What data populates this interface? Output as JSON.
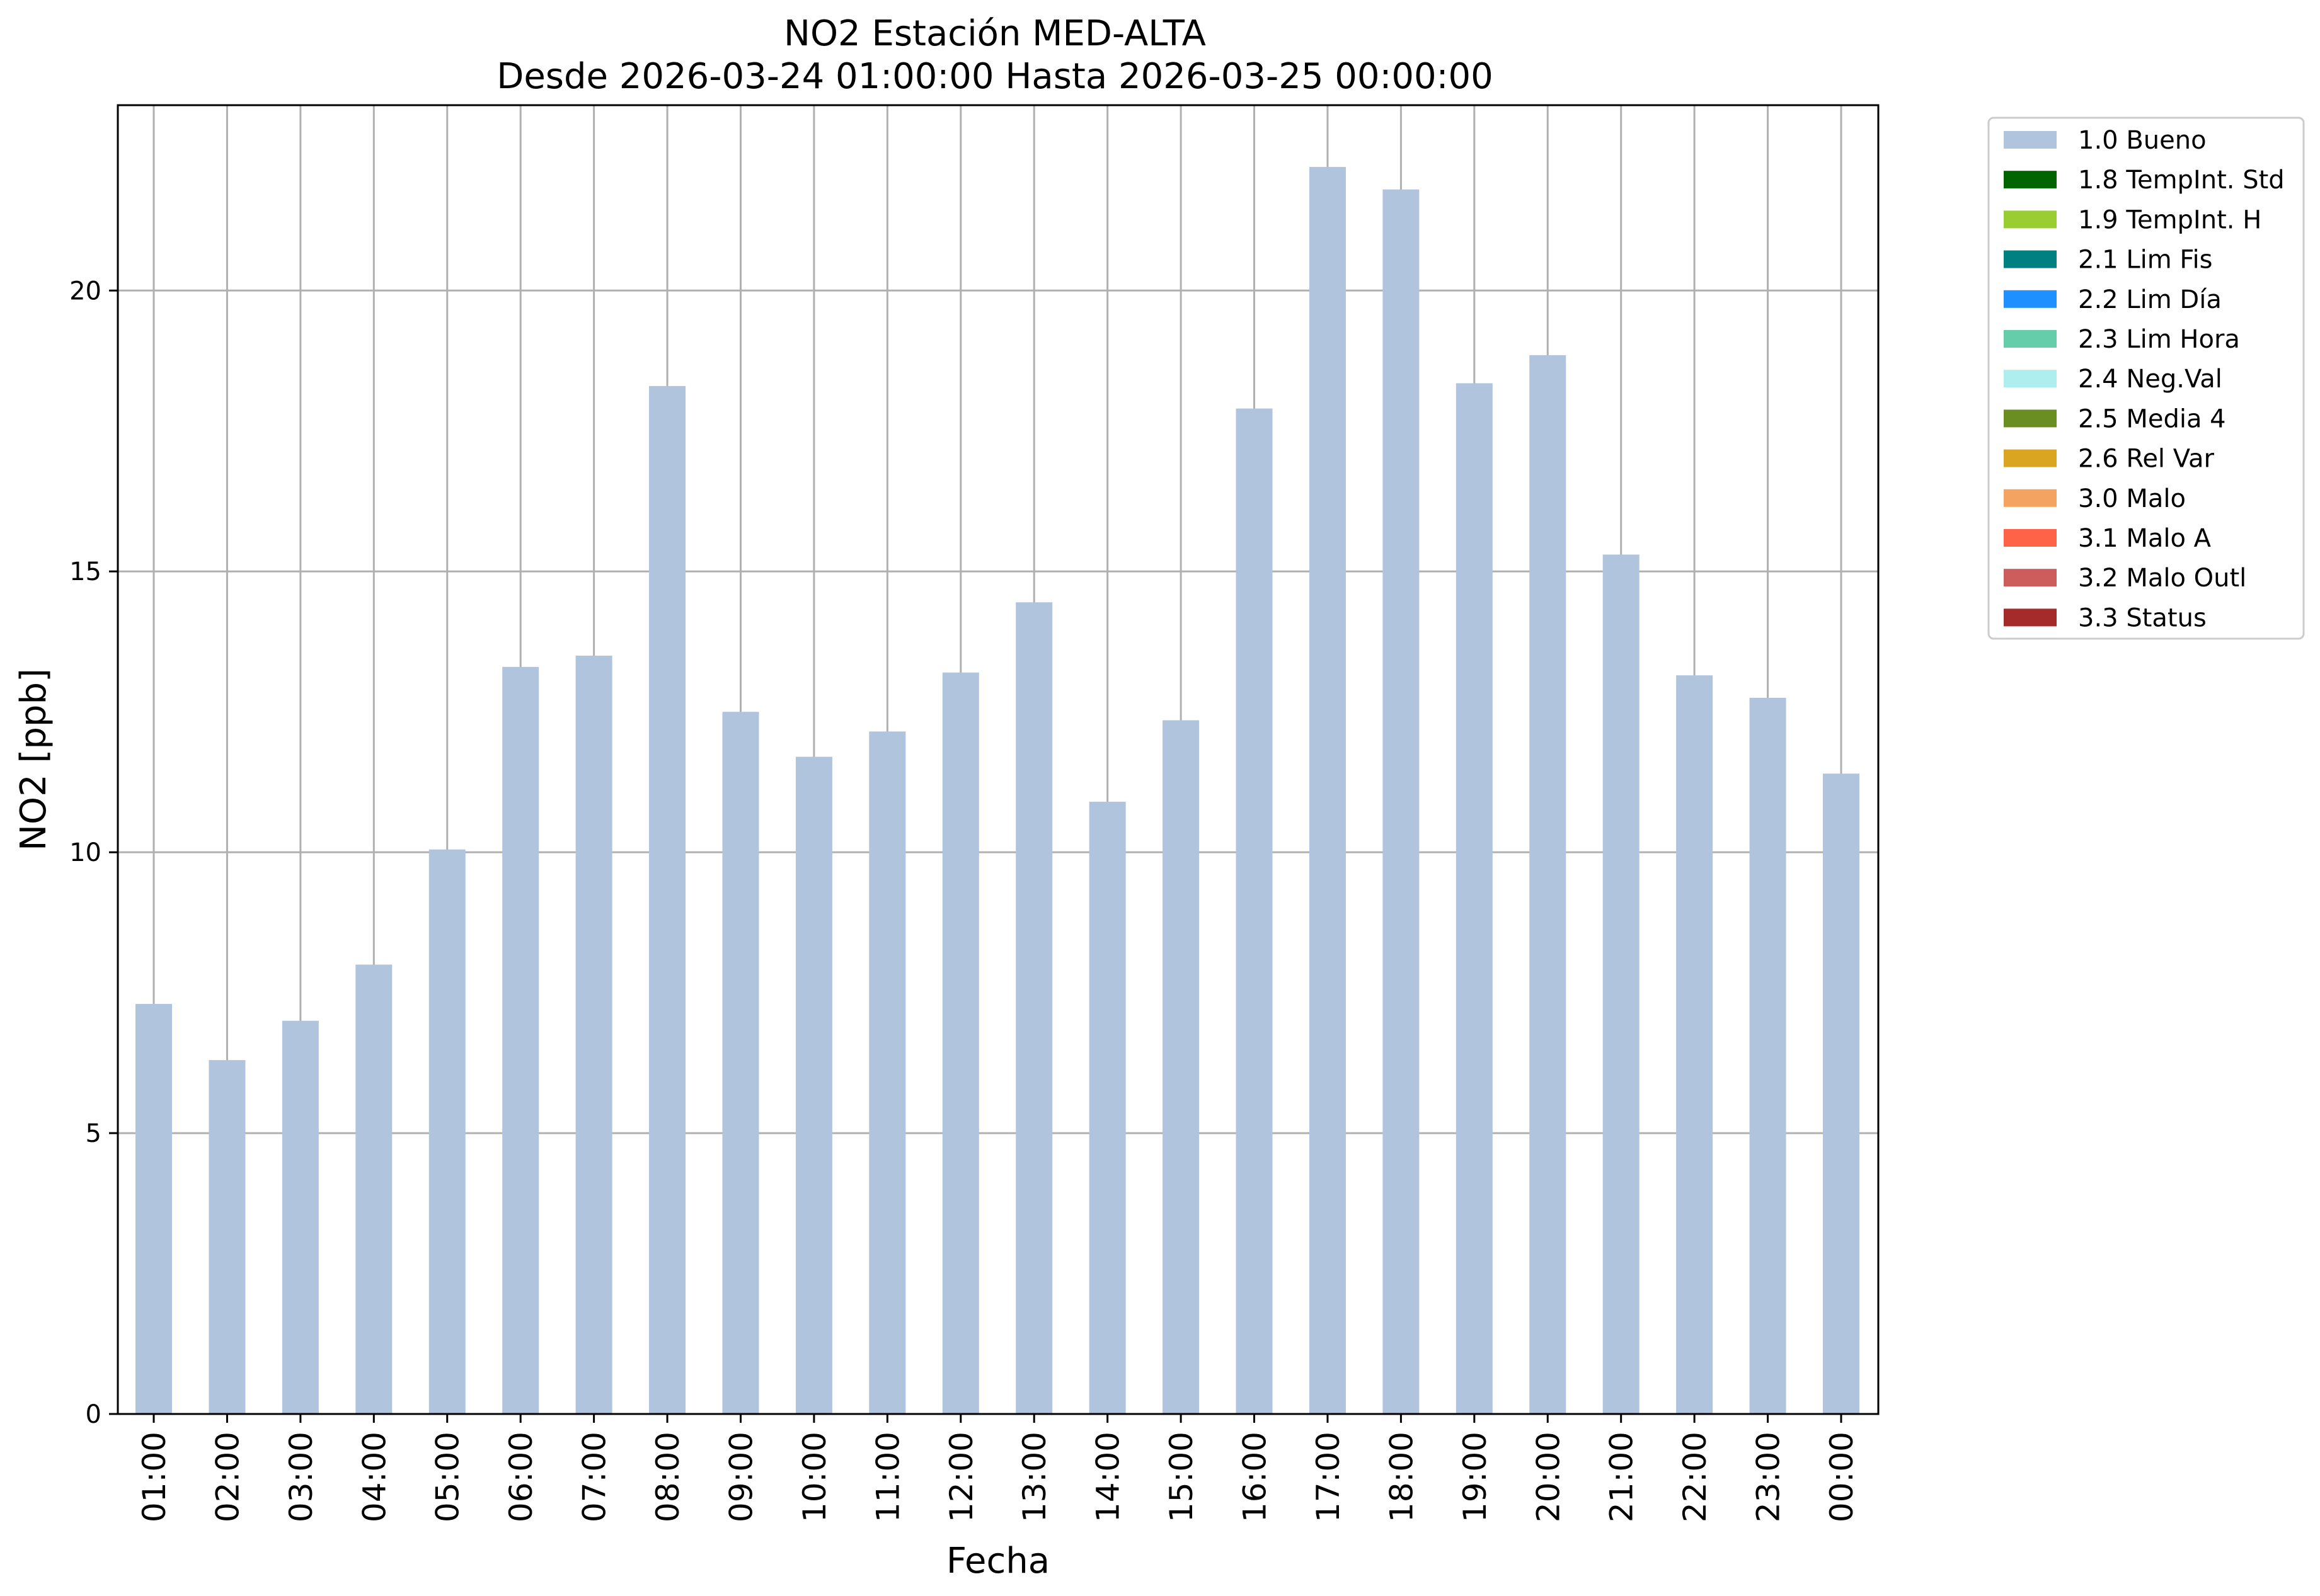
{
  "chart_data": {
    "type": "bar",
    "title": "NO2 Estación MED-ALTA",
    "subtitle": "Desde 2026-03-24 01:00:00 Hasta 2026-03-25 00:00:00",
    "xlabel": "Fecha",
    "ylabel": "NO2 [ppb]",
    "ylim": [
      0,
      23.3
    ],
    "yticks": [
      0,
      5,
      10,
      15,
      20
    ],
    "grid": true,
    "legend_position": "outside-top-right",
    "categories": [
      "01:00",
      "02:00",
      "03:00",
      "04:00",
      "05:00",
      "06:00",
      "07:00",
      "08:00",
      "09:00",
      "10:00",
      "11:00",
      "12:00",
      "13:00",
      "14:00",
      "15:00",
      "16:00",
      "17:00",
      "18:00",
      "19:00",
      "20:00",
      "21:00",
      "22:00",
      "23:00",
      "00:00"
    ],
    "series": [
      {
        "name": "1.0 Bueno",
        "color": "#b0c4de",
        "values": [
          7.3,
          6.3,
          7.0,
          8.0,
          10.05,
          13.3,
          13.5,
          18.3,
          12.5,
          11.7,
          12.15,
          13.2,
          14.45,
          10.9,
          12.35,
          17.9,
          22.2,
          21.8,
          18.35,
          18.85,
          15.3,
          13.15,
          12.75,
          11.4
        ]
      }
    ],
    "legend": [
      {
        "label": "1.0 Bueno",
        "color": "#b0c4de"
      },
      {
        "label": "1.8 TempInt. Std",
        "color": "#006400"
      },
      {
        "label": "1.9 TempInt. H",
        "color": "#9acd32"
      },
      {
        "label": "2.1 Lim Fis",
        "color": "#008080"
      },
      {
        "label": "2.2 Lim Día",
        "color": "#1e90ff"
      },
      {
        "label": "2.3 Lim Hora",
        "color": "#66cdaa"
      },
      {
        "label": "2.4 Neg.Val",
        "color": "#afeeee"
      },
      {
        "label": "2.5 Media 4",
        "color": "#6b8e23"
      },
      {
        "label": "2.6 Rel Var",
        "color": "#daa520"
      },
      {
        "label": "3.0 Malo",
        "color": "#f4a460"
      },
      {
        "label": "3.1 Malo A",
        "color": "#ff6347"
      },
      {
        "label": "3.2 Malo Outl",
        "color": "#cd5c5c"
      },
      {
        "label": "3.3 Status",
        "color": "#a52a2a"
      }
    ]
  }
}
